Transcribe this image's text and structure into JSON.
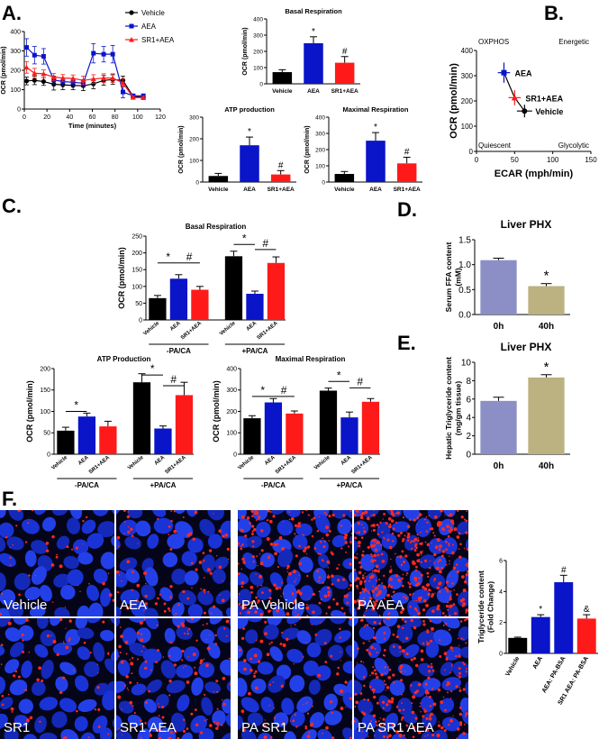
{
  "panel_letters": {
    "a": "A.",
    "b": "B.",
    "c": "C.",
    "d": "D.",
    "e": "E.",
    "f": "F."
  },
  "micrographs": {
    "labels": [
      "Vehicle",
      "AEA",
      "PA Vehicle",
      "PA  AEA",
      "SR1",
      "SR1 AEA",
      "PA SR1",
      "PA  SR1 AEA"
    ]
  },
  "colors": {
    "vehicle": "#000000",
    "aea": "#0a14c8",
    "sr1aea": "#ff1a1a",
    "liver_0h": "#8b8fc6",
    "liver_40h": "#bcb181",
    "f_vehicle": "#000000",
    "f_aea": "#0a14c8",
    "f_aea_pa": "#0a14c8",
    "f_sr1_pa": "#ff1a1a"
  },
  "chart_data": [
    {
      "id": "A_timecourse",
      "type": "line",
      "xlabel": "Time (minutes)",
      "ylabel": "OCR (pmol/min)",
      "xlim": [
        0,
        120
      ],
      "ylim": [
        0,
        400
      ],
      "xticks": [
        0,
        20,
        40,
        60,
        80,
        100,
        120
      ],
      "yticks": [
        0,
        100,
        200,
        300,
        400
      ],
      "x": [
        2,
        9,
        17,
        26,
        34,
        43,
        52,
        61,
        70,
        78,
        87,
        96,
        105
      ],
      "series": [
        {
          "name": "Vehicle",
          "color": "#000000",
          "marker": "circle",
          "values": [
            145,
            148,
            142,
            128,
            125,
            122,
            120,
            130,
            148,
            152,
            148,
            65,
            60
          ],
          "errors": [
            20,
            22,
            20,
            30,
            25,
            22,
            25,
            25,
            25,
            25,
            22,
            8,
            8
          ]
        },
        {
          "name": "AEA",
          "color": "#0a14c8",
          "marker": "square",
          "values": [
            318,
            278,
            272,
            150,
            142,
            138,
            133,
            288,
            283,
            283,
            88,
            68,
            68
          ],
          "errors": [
            45,
            45,
            40,
            20,
            18,
            18,
            18,
            50,
            40,
            45,
            30,
            10,
            10
          ]
        },
        {
          "name": "SR1+AEA",
          "color": "#ff1a1a",
          "marker": "triangle",
          "values": [
            215,
            185,
            182,
            165,
            160,
            158,
            148,
            155,
            160,
            160,
            135,
            60,
            58
          ],
          "errors": [
            30,
            25,
            20,
            18,
            18,
            18,
            22,
            22,
            22,
            22,
            20,
            8,
            8
          ]
        }
      ]
    },
    {
      "id": "A_basal",
      "type": "bar",
      "title": "Basal Respiration",
      "ylabel": "OCR (pmol/min)",
      "categories": [
        "Vehicle",
        "AEA",
        "SR1+AEA"
      ],
      "values": [
        72,
        250,
        130
      ],
      "errors": [
        15,
        40,
        38
      ],
      "ylim": [
        0,
        400
      ],
      "yticks": [
        0,
        100,
        200,
        300,
        400
      ],
      "marks": [
        "",
        "*",
        "#"
      ]
    },
    {
      "id": "A_atp",
      "type": "bar",
      "title": "ATP production",
      "ylabel": "OCR (pmol/min)",
      "categories": [
        "Vehicle",
        "AEA",
        "SR1+AEA"
      ],
      "values": [
        28,
        170,
        35
      ],
      "errors": [
        12,
        38,
        18
      ],
      "ylim": [
        0,
        300
      ],
      "yticks": [
        0,
        100,
        200,
        300
      ],
      "marks": [
        "",
        "*",
        "#"
      ]
    },
    {
      "id": "A_maximal",
      "type": "bar",
      "title": "Maximal Respiration",
      "ylabel": "OCR (pmol/min)",
      "categories": [
        "Vehicle",
        "AEA",
        "SR1+AEA"
      ],
      "values": [
        50,
        255,
        115
      ],
      "errors": [
        15,
        50,
        38
      ],
      "ylim": [
        0,
        400
      ],
      "yticks": [
        0,
        100,
        200,
        300,
        400
      ],
      "marks": [
        "",
        "*",
        "#"
      ]
    },
    {
      "id": "B_energy",
      "type": "scatter",
      "xlabel": "ECAR (mph/min)",
      "ylabel": "OCR (pmol/min)",
      "xlim": [
        0,
        150
      ],
      "ylim": [
        0,
        400
      ],
      "xticks": [
        0,
        50,
        100,
        150
      ],
      "yticks": [
        0,
        100,
        200,
        300,
        400
      ],
      "quadrants": [
        "OXPHOS",
        "Energetic",
        "Quiescent",
        "Glycolytic"
      ],
      "points": [
        {
          "name": "AEA",
          "color": "#0a14c8",
          "marker": "square",
          "x": 36,
          "y": 312,
          "xerr": 8,
          "yerr": 40
        },
        {
          "name": "SR1+AEA",
          "color": "#ff1a1a",
          "marker": "triangle",
          "x": 50,
          "y": 213,
          "xerr": 8,
          "yerr": 30
        },
        {
          "name": "Vehicle",
          "color": "#000000",
          "marker": "circle",
          "x": 63,
          "y": 160,
          "xerr": 10,
          "yerr": 25
        }
      ]
    },
    {
      "id": "C_basal",
      "type": "bar",
      "title": "Basal Respiration",
      "ylabel": "OCR (pmol/min)",
      "categories": [
        "Vehicle",
        "AEA",
        "SR1+AEA",
        "Vehicle",
        "AEA",
        "SR1+AEA"
      ],
      "groups": [
        "-PA/CA",
        "+PA/CA"
      ],
      "values": [
        65,
        123,
        90,
        190,
        78,
        170
      ],
      "errors": [
        8,
        12,
        10,
        15,
        8,
        18
      ],
      "ylim": [
        0,
        250
      ],
      "yticks": [
        0,
        50,
        100,
        150,
        200,
        250
      ],
      "marks": [
        "*",
        "#",
        "*",
        "#"
      ]
    },
    {
      "id": "C_atp",
      "type": "bar",
      "title": "ATP Production",
      "ylabel": "OCR (pmol/min)",
      "categories": [
        "Vehicle",
        "AEA",
        "SR1+AEA",
        "Vehicle",
        "AEA",
        "SR1+AEA"
      ],
      "groups": [
        "-PA/CA",
        "+PA/CA"
      ],
      "values": [
        55,
        88,
        65,
        168,
        60,
        138
      ],
      "errors": [
        8,
        8,
        12,
        20,
        6,
        30
      ],
      "ylim": [
        0,
        200
      ],
      "yticks": [
        0,
        50,
        100,
        150,
        200
      ],
      "marks": [
        "*",
        "*",
        "#"
      ]
    },
    {
      "id": "C_maximal",
      "type": "bar",
      "title": "Maximal Respiration",
      "ylabel": "OCR (pmol/min)",
      "categories": [
        "Vehicle",
        "AEA",
        "SR1+AEA",
        "Vehicle",
        "AEA",
        "SR1+AEA"
      ],
      "groups": [
        "-PA/CA",
        "+PA/CA"
      ],
      "values": [
        168,
        242,
        190,
        297,
        172,
        245
      ],
      "errors": [
        12,
        18,
        12,
        12,
        25,
        15
      ],
      "ylim": [
        0,
        400
      ],
      "yticks": [
        0,
        100,
        200,
        300,
        400
      ],
      "marks": [
        "*",
        "#",
        "*",
        "#"
      ]
    },
    {
      "id": "D_ffa",
      "type": "bar",
      "title": "Liver PHX",
      "ylabel": "Serum FFA content\n(mM)",
      "categories": [
        "0h",
        "40h"
      ],
      "values": [
        1.09,
        0.57
      ],
      "errors": [
        0.04,
        0.05
      ],
      "ylim": [
        0,
        1.5
      ],
      "yticks": [
        0.0,
        0.5,
        1.0,
        1.5
      ],
      "marks": [
        "",
        "*"
      ]
    },
    {
      "id": "E_tg",
      "type": "bar",
      "title": "Liver PHX",
      "ylabel": "Hepatic Triglyceride content\n(mg/gm tissue)",
      "categories": [
        "0h",
        "40h"
      ],
      "values": [
        5.8,
        8.35
      ],
      "errors": [
        0.4,
        0.3
      ],
      "ylim": [
        0,
        10
      ],
      "yticks": [
        0,
        2,
        4,
        6,
        8,
        10
      ],
      "marks": [
        "",
        "*"
      ]
    },
    {
      "id": "F_tg",
      "type": "bar",
      "ylabel": "Triglyceride content\n(Fold Change)",
      "categories": [
        "Vehicle",
        "AEA",
        "AEA: PA-BSA",
        "SR1 AEA: PA-BSA"
      ],
      "values": [
        1.0,
        2.35,
        4.6,
        2.25
      ],
      "errors": [
        0.05,
        0.15,
        0.45,
        0.25
      ],
      "ylim": [
        0,
        6
      ],
      "yticks": [
        0,
        2,
        4,
        6
      ],
      "marks": [
        "",
        "*",
        "#",
        "&"
      ]
    }
  ]
}
